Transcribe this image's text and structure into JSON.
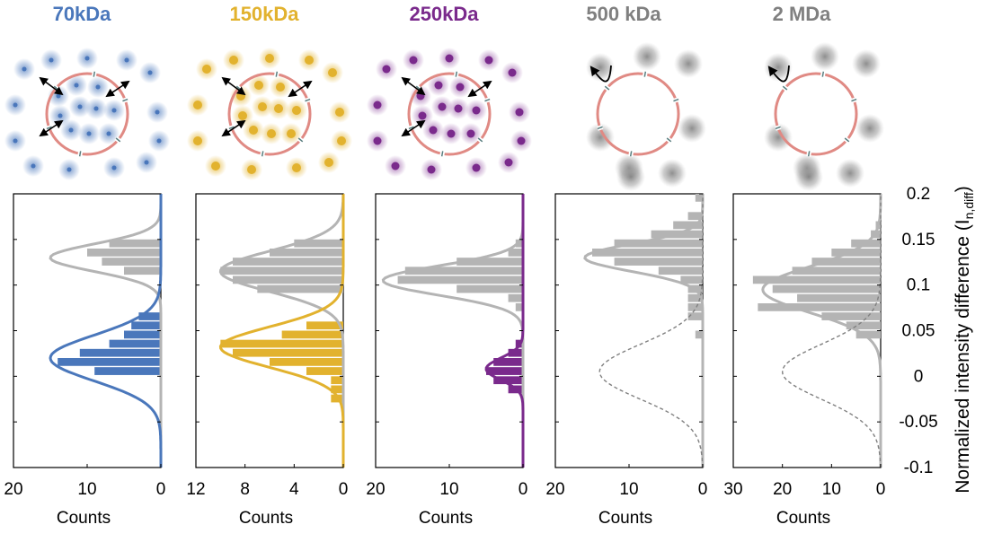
{
  "colors": {
    "gray": "#b4b4b4",
    "membrane": "#e08a84",
    "pore": "#5a7f80",
    "dashed": "#808080"
  },
  "chart_data": {
    "type": "bar",
    "orientation": "horizontal-histogram",
    "ylabel": "Normalized intensity difference",
    "ylabel_sub": "n,diff",
    "ylim": [
      -0.1,
      0.2
    ],
    "y_ticks": [
      -0.1,
      -0.05,
      0,
      0.05,
      0.1,
      0.15,
      0.2
    ],
    "y_tick_labels": [
      "-0.1",
      "-0.05",
      "0",
      "0.05",
      "0.1",
      "0.15",
      "0.2"
    ],
    "bin_width": 0.01,
    "panels": [
      {
        "title": "70kDa",
        "color": "#4a77bb",
        "cargo_style": "diffusing",
        "xlabel": "Counts",
        "xlim": [
          0,
          20
        ],
        "x_ticks": [
          20,
          10,
          0
        ],
        "x_tick_labels": [
          "20",
          "10",
          "0"
        ],
        "series": [
          {
            "kind": "gray",
            "bins": [
              {
                "y": 0.145,
                "c": 7
              },
              {
                "y": 0.135,
                "c": 10
              },
              {
                "y": 0.125,
                "c": 8
              },
              {
                "y": 0.115,
                "c": 5
              }
            ]
          },
          {
            "kind": "colored",
            "bins": [
              {
                "y": 0.065,
                "c": 3
              },
              {
                "y": 0.055,
                "c": 4
              },
              {
                "y": 0.045,
                "c": 5
              },
              {
                "y": 0.035,
                "c": 7
              },
              {
                "y": 0.025,
                "c": 11
              },
              {
                "y": 0.015,
                "c": 14
              },
              {
                "y": 0.005,
                "c": 9
              }
            ]
          }
        ],
        "fits": [
          {
            "kind": "gray",
            "mu": 0.13,
            "sigma": 0.015,
            "peak": 15,
            "style": "solid"
          },
          {
            "kind": "colored",
            "mu": 0.02,
            "sigma": 0.025,
            "peak": 15,
            "style": "solid"
          }
        ]
      },
      {
        "title": "150kDa",
        "color": "#e2b22e",
        "cargo_style": "diffusing",
        "xlabel": "Counts",
        "xlim": [
          0,
          12
        ],
        "x_ticks": [
          12,
          8,
          4,
          0
        ],
        "x_tick_labels": [
          "12",
          "8",
          "4",
          "0"
        ],
        "series": [
          {
            "kind": "gray",
            "bins": [
              {
                "y": 0.145,
                "c": 4
              },
              {
                "y": 0.135,
                "c": 6
              },
              {
                "y": 0.125,
                "c": 9
              },
              {
                "y": 0.115,
                "c": 10
              },
              {
                "y": 0.105,
                "c": 9
              },
              {
                "y": 0.095,
                "c": 7
              }
            ]
          },
          {
            "kind": "colored",
            "bins": [
              {
                "y": 0.055,
                "c": 3
              },
              {
                "y": 0.045,
                "c": 5
              },
              {
                "y": 0.035,
                "c": 10
              },
              {
                "y": 0.025,
                "c": 9
              },
              {
                "y": 0.015,
                "c": 6
              },
              {
                "y": 0.005,
                "c": 3
              },
              {
                "y": -0.005,
                "c": 1
              },
              {
                "y": -0.015,
                "c": 1
              },
              {
                "y": -0.025,
                "c": 1
              }
            ]
          }
        ],
        "fits": [
          {
            "kind": "gray",
            "mu": 0.115,
            "sigma": 0.022,
            "peak": 10,
            "style": "solid"
          },
          {
            "kind": "colored",
            "mu": 0.032,
            "sigma": 0.022,
            "peak": 10,
            "style": "solid"
          }
        ]
      },
      {
        "title": "250kDa",
        "color": "#7a2a8c",
        "cargo_style": "diffusing",
        "xlabel": "Counts",
        "xlim": [
          0,
          20
        ],
        "x_ticks": [
          20,
          10,
          0
        ],
        "x_tick_labels": [
          "20",
          "10",
          "0"
        ],
        "series": [
          {
            "kind": "gray",
            "bins": [
              {
                "y": 0.145,
                "c": 1
              },
              {
                "y": 0.135,
                "c": 2
              },
              {
                "y": 0.125,
                "c": 9
              },
              {
                "y": 0.115,
                "c": 16
              },
              {
                "y": 0.105,
                "c": 17
              },
              {
                "y": 0.095,
                "c": 9
              },
              {
                "y": 0.085,
                "c": 2
              },
              {
                "y": 0.075,
                "c": 1
              }
            ]
          },
          {
            "kind": "colored",
            "bins": [
              {
                "y": 0.035,
                "c": 1
              },
              {
                "y": 0.025,
                "c": 2
              },
              {
                "y": 0.015,
                "c": 4
              },
              {
                "y": 0.005,
                "c": 5
              },
              {
                "y": -0.005,
                "c": 4
              },
              {
                "y": -0.015,
                "c": 2
              }
            ]
          }
        ],
        "fits": [
          {
            "kind": "gray",
            "mu": 0.105,
            "sigma": 0.016,
            "peak": 19,
            "style": "solid"
          },
          {
            "kind": "colored",
            "mu": 0.008,
            "sigma": 0.012,
            "peak": 5,
            "style": "solid"
          }
        ]
      },
      {
        "title": "500 kDa",
        "color": "#808080",
        "cargo_style": "blurred",
        "xlabel": "Counts",
        "xlim": [
          0,
          20
        ],
        "x_ticks": [
          20,
          10,
          0
        ],
        "x_tick_labels": [
          "20",
          "10",
          "0"
        ],
        "series": [
          {
            "kind": "gray",
            "bins": [
              {
                "y": 0.195,
                "c": 1
              },
              {
                "y": 0.175,
                "c": 2
              },
              {
                "y": 0.165,
                "c": 4
              },
              {
                "y": 0.155,
                "c": 7
              },
              {
                "y": 0.145,
                "c": 12
              },
              {
                "y": 0.135,
                "c": 15
              },
              {
                "y": 0.125,
                "c": 12
              },
              {
                "y": 0.115,
                "c": 6
              },
              {
                "y": 0.105,
                "c": 3
              },
              {
                "y": 0.095,
                "c": 2
              },
              {
                "y": 0.085,
                "c": 2
              },
              {
                "y": 0.075,
                "c": 2
              },
              {
                "y": 0.065,
                "c": 2
              },
              {
                "y": 0.045,
                "c": 1
              }
            ]
          }
        ],
        "fits": [
          {
            "kind": "gray",
            "mu": 0.13,
            "sigma": 0.015,
            "peak": 16,
            "style": "solid"
          },
          {
            "kind": "dashed",
            "mu": 0.005,
            "sigma": 0.03,
            "peak": 14,
            "style": "dashed"
          }
        ]
      },
      {
        "title": "2 MDa",
        "color": "#808080",
        "cargo_style": "blurred",
        "xlabel": "Counts",
        "xlim": [
          0,
          30
        ],
        "x_ticks": [
          30,
          20,
          10,
          0
        ],
        "x_tick_labels": [
          "30",
          "20",
          "10",
          "0"
        ],
        "series": [
          {
            "kind": "gray",
            "bins": [
              {
                "y": 0.165,
                "c": 1
              },
              {
                "y": 0.155,
                "c": 2
              },
              {
                "y": 0.145,
                "c": 6
              },
              {
                "y": 0.135,
                "c": 10
              },
              {
                "y": 0.125,
                "c": 14
              },
              {
                "y": 0.115,
                "c": 18
              },
              {
                "y": 0.105,
                "c": 26
              },
              {
                "y": 0.095,
                "c": 22
              },
              {
                "y": 0.085,
                "c": 17
              },
              {
                "y": 0.075,
                "c": 25
              },
              {
                "y": 0.065,
                "c": 12
              },
              {
                "y": 0.055,
                "c": 7
              },
              {
                "y": 0.045,
                "c": 5
              }
            ]
          }
        ],
        "fits": [
          {
            "kind": "gray",
            "mu": 0.095,
            "sigma": 0.025,
            "peak": 24,
            "style": "solid"
          },
          {
            "kind": "dashed",
            "mu": 0.005,
            "sigma": 0.03,
            "peak": 20,
            "style": "dashed"
          }
        ]
      }
    ]
  }
}
